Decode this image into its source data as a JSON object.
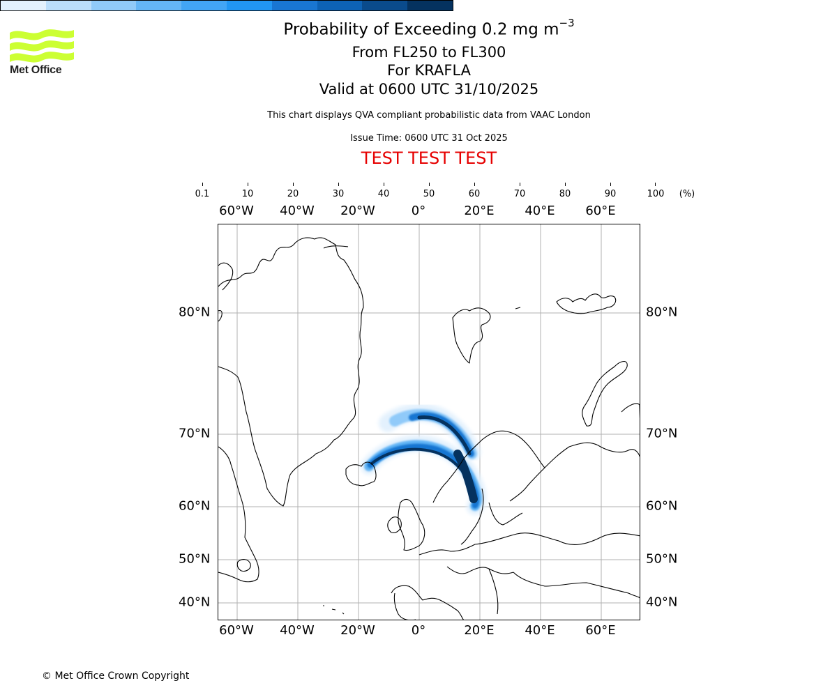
{
  "logo": {
    "text": "Met Office",
    "color": "#ccff33"
  },
  "header": {
    "title_prefix": "Probability of Exceeding 0.2 mg m",
    "title_exponent": "−3",
    "levels": "From FL250 to FL300",
    "volcano": "For KRAFLA",
    "valid": "Valid at 0600 UTC 31/10/2025",
    "description": "This chart displays QVA compliant probabilistic data from VAAC London",
    "issue_time": "Issue Time: 0600 UTC 31 Oct 2025",
    "test_banner": "TEST TEST TEST",
    "test_banner_color": "#e60000"
  },
  "colorbar": {
    "unit": "(%)",
    "ticks": [
      "0.1",
      "10",
      "20",
      "30",
      "40",
      "50",
      "60",
      "70",
      "80",
      "90",
      "100"
    ],
    "colors": [
      "#e3f1fd",
      "#bbdefb",
      "#90caf9",
      "#64b5f6",
      "#42a5f5",
      "#2196f3",
      "#1976d2",
      "#0d62b5",
      "#0a4b8c",
      "#05325f"
    ]
  },
  "map": {
    "lon_labels": [
      "60°W",
      "40°W",
      "20°W",
      "0°",
      "20°E",
      "40°E",
      "60°E"
    ],
    "lat_labels": [
      "80°N",
      "70°N",
      "60°N",
      "50°N",
      "40°N"
    ],
    "gridline_color": "#b0b0b0",
    "plume_colors": {
      "core": "#05325f",
      "mid": "#1976d2",
      "edge": "#90caf9",
      "fringe": "#e3f1fd"
    }
  },
  "chart_data": {
    "type": "heatmap",
    "title": "Probability of Exceeding 0.2 mg m⁻³",
    "subtitle": [
      "From FL250 to FL300",
      "For KRAFLA",
      "Valid at 0600 UTC 31/10/2025"
    ],
    "colorbar": {
      "label": "(%)",
      "bounds": [
        0.1,
        10,
        20,
        30,
        40,
        50,
        60,
        70,
        80,
        90,
        100
      ],
      "colors": [
        "#e3f1fd",
        "#bbdefb",
        "#90caf9",
        "#64b5f6",
        "#42a5f5",
        "#2196f3",
        "#1976d2",
        "#0d62b5",
        "#0a4b8c",
        "#05325f"
      ]
    },
    "x_ticks": [
      "60°W",
      "40°W",
      "20°W",
      "0°",
      "20°E",
      "40°E",
      "60°E"
    ],
    "y_ticks": [
      "80°N",
      "70°N",
      "60°N",
      "50°N",
      "40°N"
    ],
    "grid": true,
    "source": "Krafla, NE Iceland (~65.7°N, 16.8°W)",
    "features": [
      {
        "name": "southern plume arc",
        "from": "Krafla, Iceland",
        "to": "Sweden/Baltic (~60°N, 18°E)",
        "peak_probability": "90-100"
      },
      {
        "name": "northern plume arc",
        "from": "~72°N, 8°W",
        "to": "Norwegian coast (~67°N, 15°E)",
        "peak_probability": "90-100"
      }
    ]
  },
  "footer": {
    "copyright": "© Met Office Crown Copyright"
  }
}
